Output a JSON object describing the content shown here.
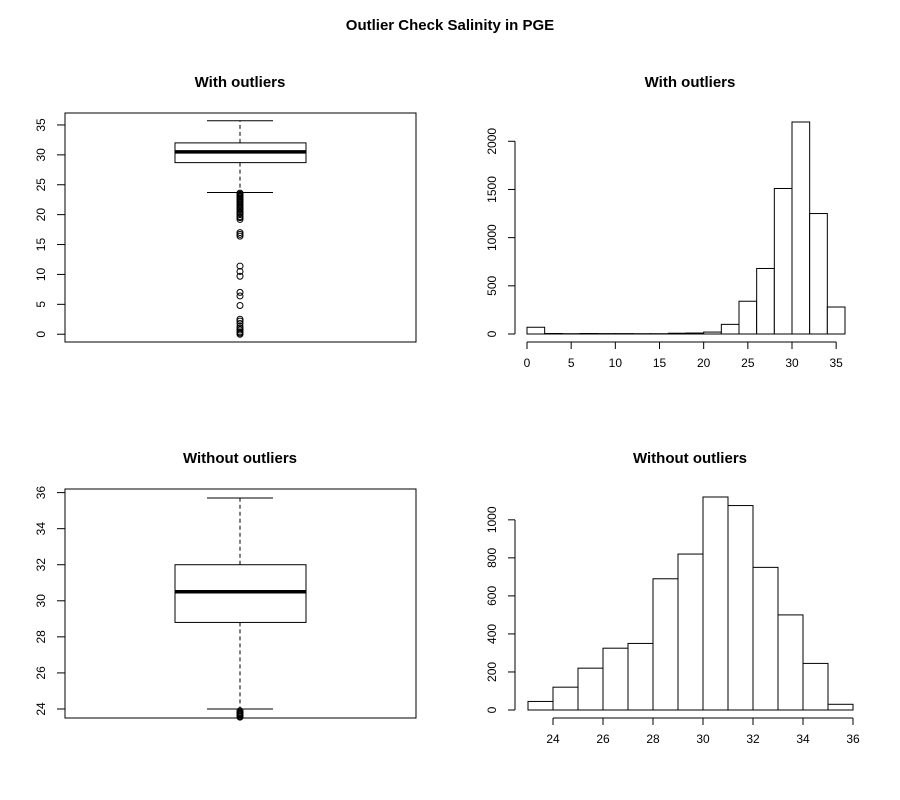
{
  "page": {
    "title": "Outlier Check Salinity in PGE"
  },
  "chart_data": [
    {
      "type": "boxplot",
      "title": "With outliers",
      "ylim": [
        -1.3,
        37
      ],
      "yticks": [
        0,
        5,
        10,
        15,
        20,
        25,
        30,
        35
      ],
      "box": {
        "lower_whisker": 23.7,
        "q1": 28.7,
        "median": 30.5,
        "q3": 32.0,
        "upper_whisker": 35.7
      },
      "outliers": [
        23.6,
        23.4,
        23.3,
        23.1,
        23.0,
        22.8,
        22.7,
        22.5,
        22.4,
        22.2,
        22.0,
        21.8,
        21.6,
        21.4,
        21.2,
        21.0,
        20.8,
        20.5,
        20.3,
        20.0,
        19.7,
        19.5,
        19.2,
        17.0,
        16.7,
        16.4,
        11.4,
        10.5,
        9.7,
        7.0,
        6.4,
        4.8,
        2.5,
        2.2,
        1.8,
        1.3,
        1.0,
        0.7,
        0.4,
        0.2,
        0.0
      ]
    },
    {
      "type": "bar",
      "title": "With outliers",
      "bin_edges": [
        0,
        2,
        4,
        6,
        8,
        10,
        12,
        14,
        16,
        18,
        20,
        22,
        24,
        26,
        28,
        30,
        32,
        34,
        36
      ],
      "values": [
        70,
        5,
        3,
        5,
        4,
        4,
        3,
        3,
        8,
        10,
        20,
        100,
        340,
        680,
        1510,
        2200,
        1250,
        280
      ],
      "xlim": [
        0,
        36
      ],
      "xticks": [
        0,
        5,
        10,
        15,
        20,
        25,
        30,
        35
      ],
      "xtick_labels": [
        "0",
        "5",
        "10",
        "15",
        "20",
        "25",
        "30",
        "35"
      ],
      "ylim": [
        0,
        2200
      ],
      "yticks": [
        0,
        500,
        1000,
        1500,
        2000
      ],
      "ytick_labels": [
        "0",
        "500",
        "1000",
        "1500",
        "2000"
      ]
    },
    {
      "type": "boxplot",
      "title": "Without outliers",
      "ylim": [
        23.5,
        36.2
      ],
      "yticks": [
        24,
        26,
        28,
        30,
        32,
        34,
        36
      ],
      "box": {
        "lower_whisker": 24.0,
        "q1": 28.8,
        "median": 30.5,
        "q3": 32.0,
        "upper_whisker": 35.7
      },
      "outliers": [
        23.9,
        23.8,
        23.75,
        23.7,
        23.65,
        23.6,
        23.55
      ]
    },
    {
      "type": "bar",
      "title": "Without outliers",
      "bin_edges": [
        23,
        24,
        25,
        26,
        27,
        28,
        29,
        30,
        31,
        32,
        33,
        34,
        35,
        36
      ],
      "values": [
        45,
        120,
        220,
        325,
        350,
        690,
        820,
        1120,
        1075,
        750,
        500,
        245,
        30
      ],
      "xlim": [
        24,
        36
      ],
      "xticks": [
        24,
        26,
        28,
        30,
        32,
        34,
        36
      ],
      "xtick_labels": [
        "24",
        "26",
        "28",
        "30",
        "32",
        "34",
        "36"
      ],
      "ylim": [
        0,
        1120
      ],
      "yticks": [
        0,
        200,
        400,
        600,
        800,
        1000
      ],
      "ytick_labels": [
        "0",
        "200",
        "400",
        "600",
        "800",
        "1000"
      ]
    }
  ]
}
